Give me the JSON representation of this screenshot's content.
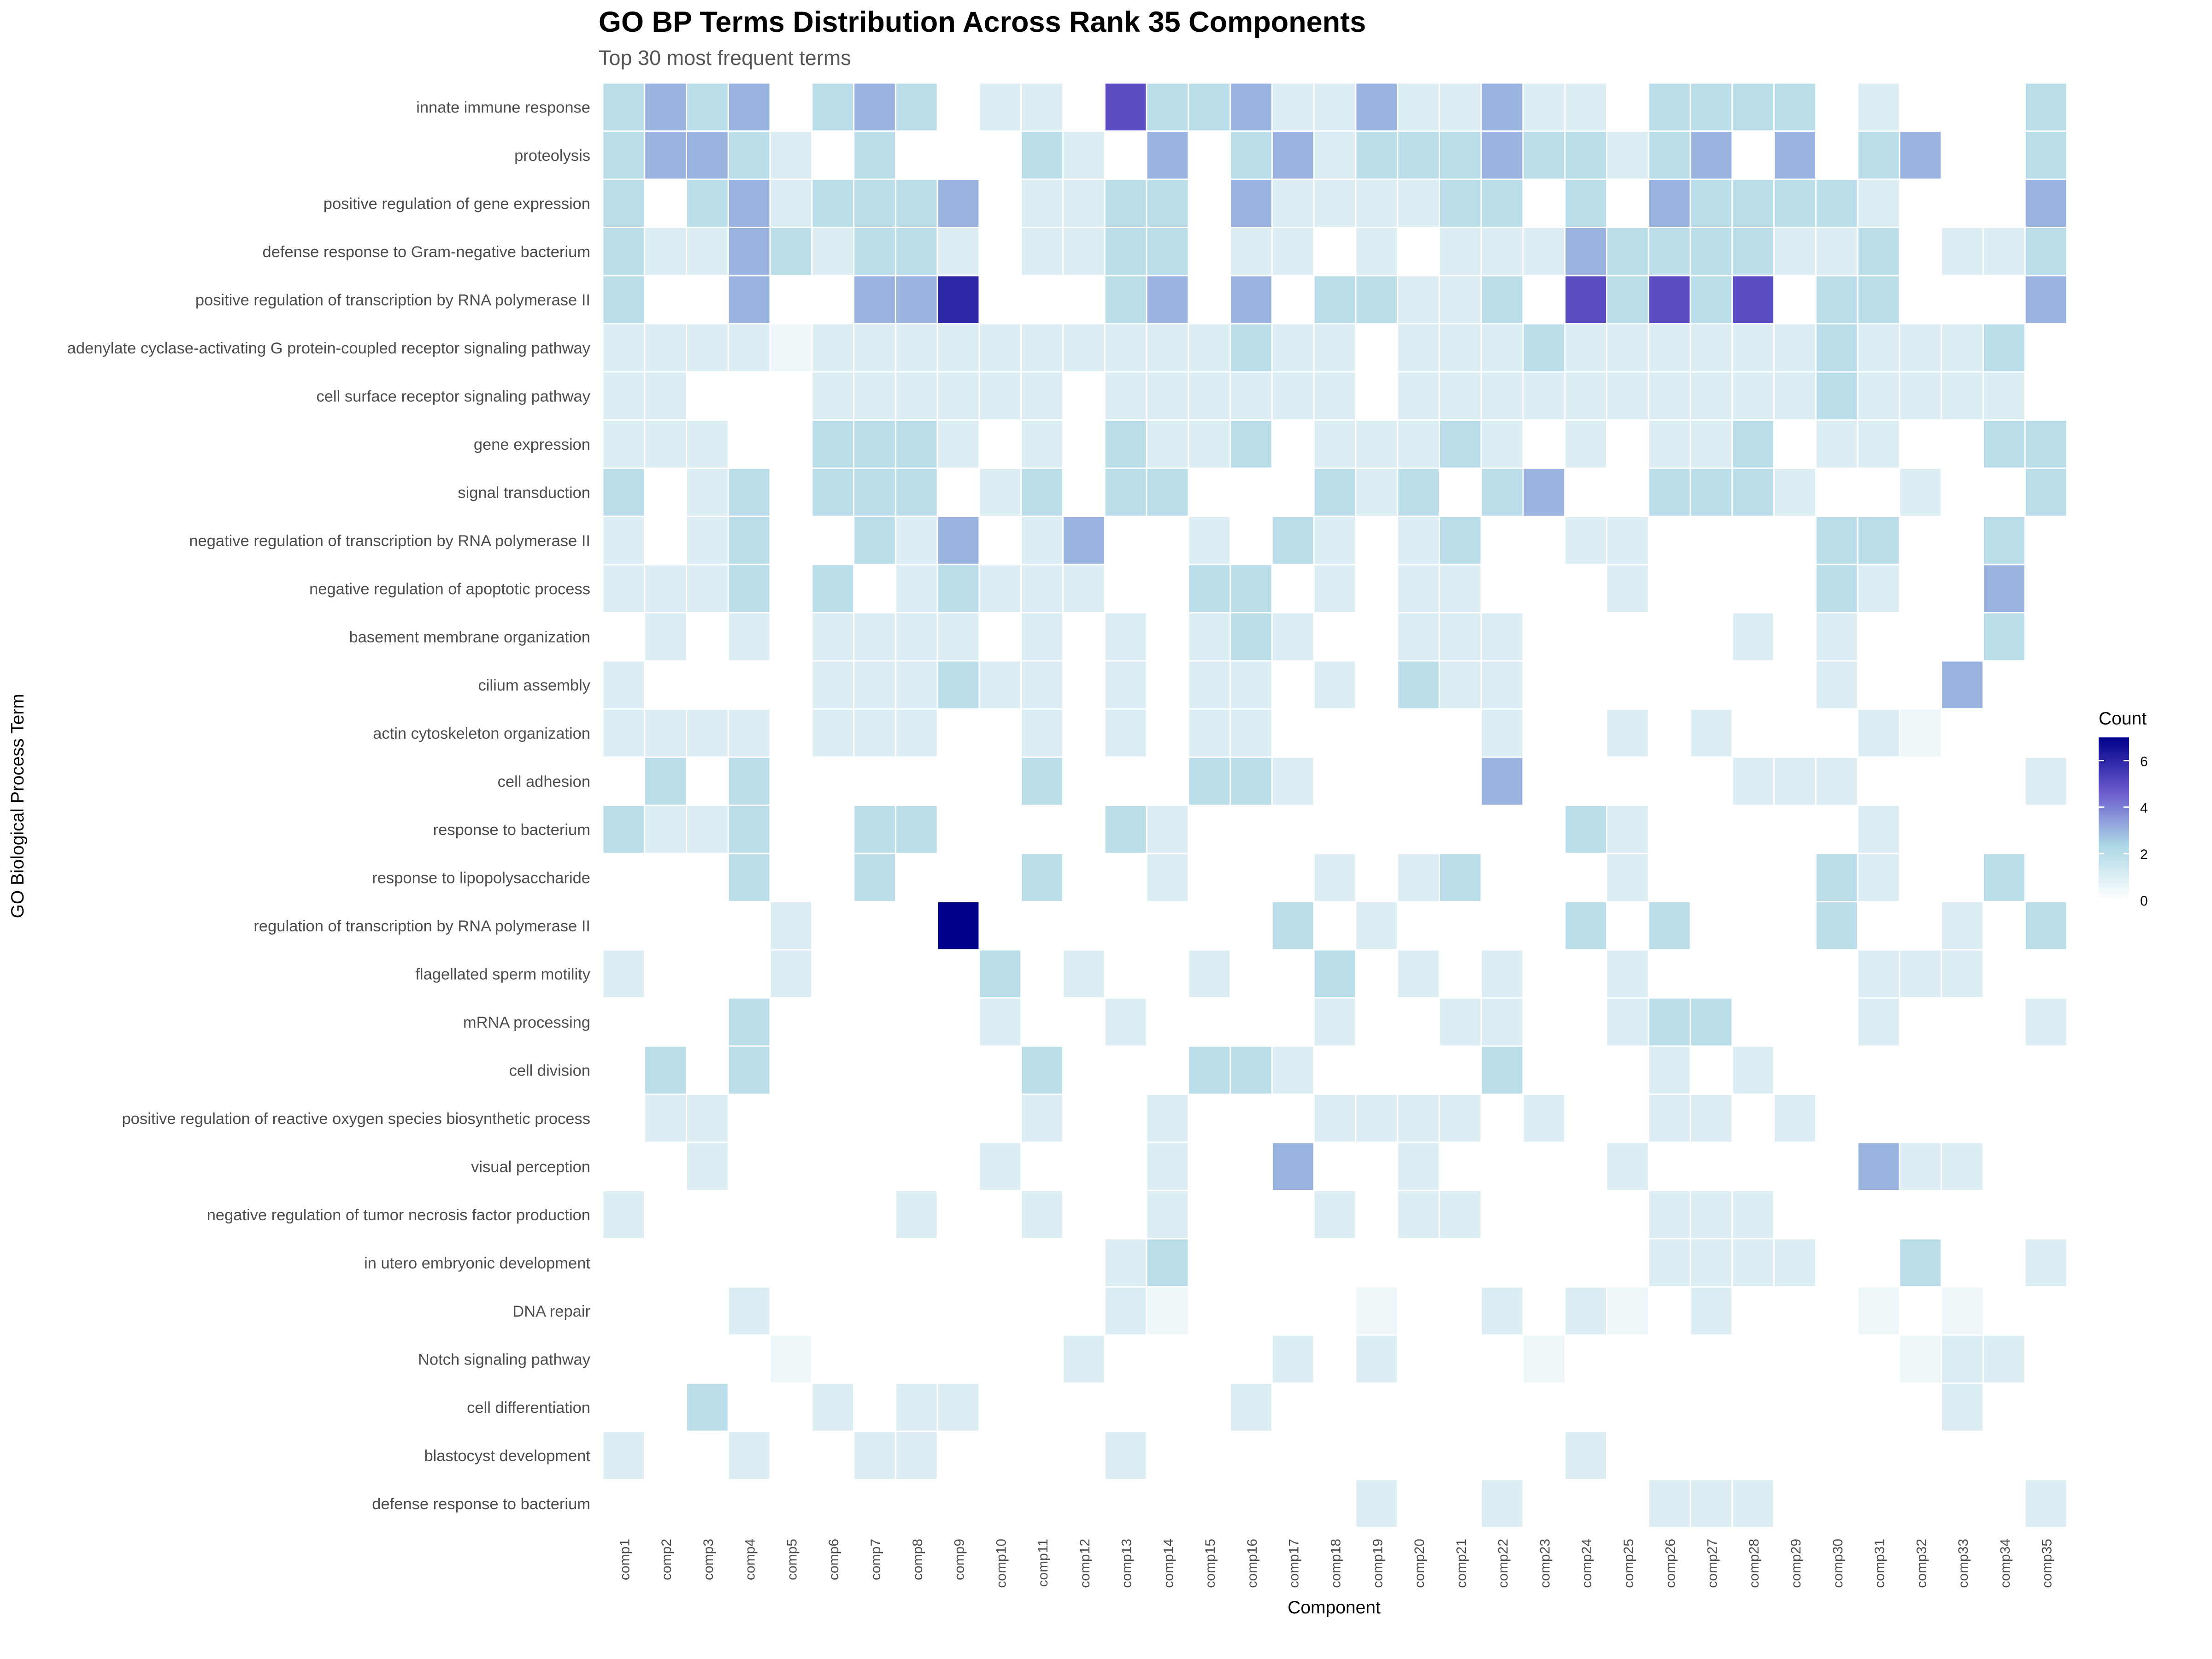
{
  "chart_data": {
    "type": "heatmap",
    "title": "GO BP Terms Distribution Across Rank 35 Components",
    "subtitle": "Top 30 most frequent terms",
    "x_label": "Component",
    "y_label": "GO Biological Process Term",
    "legend_title": "Count",
    "clim": [
      0,
      7
    ],
    "cticks": [
      0,
      2,
      4,
      6
    ],
    "colors": [
      "#ffffff",
      "#add8e6",
      "#6a5acd",
      "#00008b"
    ],
    "x": [
      "comp1",
      "comp2",
      "comp3",
      "comp4",
      "comp5",
      "comp6",
      "comp7",
      "comp8",
      "comp9",
      "comp10",
      "comp11",
      "comp12",
      "comp13",
      "comp14",
      "comp15",
      "comp16",
      "comp17",
      "comp18",
      "comp19",
      "comp20",
      "comp21",
      "comp22",
      "comp23",
      "comp24",
      "comp25",
      "comp26",
      "comp27",
      "comp28",
      "comp29",
      "comp30",
      "comp31",
      "comp32",
      "comp33",
      "comp34",
      "comp35"
    ],
    "y": [
      "innate immune response",
      "proteolysis",
      "positive regulation of gene expression",
      "defense response to Gram-negative bacterium",
      "positive regulation of transcription by RNA polymerase II",
      "adenylate cyclase-activating G protein-coupled receptor signaling pathway",
      "cell surface receptor signaling pathway",
      "gene expression",
      "signal transduction",
      "negative regulation of transcription by RNA polymerase II",
      "negative regulation of apoptotic process",
      "basement membrane organization",
      "cilium assembly",
      "actin cytoskeleton organization",
      "cell adhesion",
      "response to bacterium",
      "response to lipopolysaccharide",
      "regulation of transcription by RNA polymerase II",
      "flagellated sperm motility",
      "mRNA processing",
      "cell division",
      "positive regulation of reactive oxygen species biosynthetic process",
      "visual perception",
      "negative regulation of tumor necrosis factor production",
      "in utero embryonic development",
      "DNA repair",
      "Notch signaling pathway",
      "cell differentiation",
      "blastocyst development",
      "defense response to bacterium"
    ],
    "values": [
      [
        2,
        3,
        2,
        3,
        null,
        2,
        3,
        2,
        null,
        1,
        1,
        null,
        5,
        2,
        2,
        3,
        1,
        1,
        3,
        1,
        1,
        3,
        1,
        1,
        null,
        2,
        2,
        2,
        2,
        null,
        1,
        null,
        null,
        null,
        2
      ],
      [
        2,
        3,
        3,
        2,
        1,
        null,
        2,
        null,
        null,
        null,
        2,
        1,
        null,
        3,
        null,
        2,
        3,
        1,
        2,
        2,
        2,
        3,
        2,
        2,
        1,
        2,
        3,
        null,
        3,
        null,
        2,
        3,
        null,
        null,
        2
      ],
      [
        2,
        null,
        2,
        3,
        1,
        2,
        2,
        2,
        3,
        null,
        1,
        1,
        2,
        2,
        null,
        3,
        1,
        1,
        1,
        1,
        2,
        2,
        null,
        2,
        null,
        3,
        2,
        2,
        2,
        2,
        1,
        null,
        null,
        null,
        3
      ],
      [
        2,
        1,
        1,
        3,
        2,
        1,
        2,
        2,
        1,
        null,
        1,
        1,
        2,
        2,
        null,
        1,
        1,
        null,
        1,
        null,
        1,
        1,
        1,
        3,
        2,
        2,
        2,
        2,
        1,
        1,
        2,
        null,
        1,
        1,
        2
      ],
      [
        2,
        null,
        null,
        3,
        null,
        null,
        3,
        3,
        6,
        null,
        null,
        null,
        2,
        3,
        null,
        3,
        null,
        2,
        2,
        1,
        1,
        2,
        null,
        5,
        2,
        5,
        2,
        5,
        null,
        2,
        2,
        null,
        null,
        null,
        3
      ],
      [
        1,
        1,
        1,
        1,
        0.5,
        1,
        1,
        1,
        1,
        1,
        1,
        1,
        1,
        1,
        1,
        2,
        1,
        1,
        null,
        1,
        1,
        1,
        2,
        1,
        1,
        1,
        1,
        1,
        1,
        2,
        1,
        1,
        1,
        2,
        null
      ],
      [
        1,
        1,
        null,
        null,
        null,
        1,
        1,
        1,
        1,
        1,
        1,
        null,
        1,
        1,
        1,
        1,
        1,
        1,
        null,
        1,
        1,
        1,
        1,
        1,
        1,
        1,
        1,
        1,
        1,
        2,
        1,
        1,
        1,
        1,
        null
      ],
      [
        1,
        1,
        1,
        null,
        null,
        2,
        2,
        2,
        1,
        null,
        1,
        null,
        2,
        1,
        1,
        2,
        null,
        1,
        1,
        1,
        2,
        1,
        null,
        1,
        null,
        1,
        1,
        2,
        null,
        1,
        1,
        null,
        null,
        2,
        2
      ],
      [
        2,
        null,
        1,
        2,
        null,
        2,
        2,
        2,
        null,
        1,
        2,
        null,
        2,
        2,
        null,
        null,
        null,
        2,
        1,
        2,
        null,
        2,
        3,
        null,
        null,
        2,
        2,
        2,
        1,
        null,
        null,
        1,
        null,
        null,
        2
      ],
      [
        1,
        null,
        1,
        2,
        null,
        null,
        2,
        1,
        3,
        null,
        1,
        3,
        null,
        null,
        1,
        null,
        2,
        1,
        null,
        1,
        2,
        null,
        null,
        1,
        1,
        null,
        null,
        null,
        null,
        2,
        2,
        null,
        null,
        2,
        null
      ],
      [
        1,
        1,
        1,
        2,
        null,
        2,
        null,
        1,
        2,
        1,
        1,
        1,
        null,
        null,
        2,
        2,
        null,
        1,
        null,
        1,
        1,
        null,
        null,
        null,
        1,
        null,
        null,
        null,
        null,
        2,
        1,
        null,
        null,
        3,
        null
      ],
      [
        null,
        1,
        null,
        1,
        null,
        1,
        1,
        1,
        1,
        null,
        1,
        null,
        1,
        null,
        1,
        2,
        1,
        null,
        null,
        1,
        1,
        1,
        null,
        null,
        null,
        null,
        null,
        1,
        null,
        1,
        null,
        null,
        null,
        2,
        null
      ],
      [
        1,
        null,
        null,
        null,
        null,
        1,
        1,
        1,
        2,
        1,
        1,
        null,
        1,
        null,
        1,
        1,
        null,
        1,
        null,
        2,
        1,
        1,
        null,
        null,
        null,
        null,
        null,
        null,
        null,
        1,
        null,
        null,
        3,
        null,
        null
      ],
      [
        1,
        1,
        1,
        1,
        null,
        1,
        1,
        1,
        null,
        null,
        1,
        null,
        1,
        null,
        1,
        1,
        null,
        null,
        null,
        null,
        null,
        1,
        null,
        null,
        1,
        null,
        1,
        null,
        null,
        null,
        1,
        0.5,
        null,
        null,
        null
      ],
      [
        null,
        2,
        null,
        2,
        null,
        null,
        null,
        null,
        null,
        null,
        2,
        null,
        null,
        null,
        2,
        2,
        1,
        null,
        null,
        null,
        null,
        3,
        null,
        null,
        null,
        null,
        null,
        1,
        1,
        1,
        null,
        null,
        null,
        null,
        1
      ],
      [
        2,
        1,
        1,
        2,
        null,
        null,
        2,
        2,
        null,
        null,
        null,
        null,
        2,
        1,
        null,
        null,
        null,
        null,
        null,
        null,
        null,
        null,
        null,
        2,
        1,
        null,
        null,
        null,
        null,
        null,
        1,
        null,
        null,
        null,
        null
      ],
      [
        null,
        null,
        null,
        2,
        null,
        null,
        2,
        null,
        null,
        null,
        2,
        null,
        null,
        1,
        null,
        null,
        null,
        1,
        null,
        1,
        2,
        null,
        null,
        null,
        1,
        null,
        null,
        null,
        null,
        2,
        1,
        null,
        null,
        2,
        null
      ],
      [
        null,
        null,
        null,
        null,
        1,
        null,
        null,
        null,
        7,
        null,
        null,
        null,
        null,
        null,
        null,
        null,
        2,
        null,
        1,
        null,
        null,
        null,
        null,
        2,
        null,
        2,
        null,
        null,
        null,
        2,
        null,
        null,
        1,
        null,
        2
      ],
      [
        1,
        null,
        null,
        null,
        1,
        null,
        null,
        null,
        null,
        2,
        null,
        1,
        null,
        null,
        1,
        null,
        null,
        2,
        null,
        1,
        null,
        1,
        null,
        null,
        1,
        null,
        null,
        null,
        null,
        null,
        1,
        1,
        1,
        null,
        null
      ],
      [
        null,
        null,
        null,
        2,
        null,
        null,
        null,
        null,
        null,
        1,
        null,
        null,
        1,
        null,
        null,
        null,
        null,
        1,
        null,
        null,
        1,
        1,
        null,
        null,
        1,
        2,
        2,
        null,
        null,
        null,
        1,
        null,
        null,
        null,
        1
      ],
      [
        null,
        2,
        null,
        2,
        null,
        null,
        null,
        null,
        null,
        null,
        2,
        null,
        null,
        null,
        2,
        2,
        1,
        null,
        null,
        null,
        null,
        2,
        null,
        null,
        null,
        1,
        null,
        1,
        null,
        null,
        null,
        null,
        null,
        null,
        null
      ],
      [
        null,
        1,
        1,
        null,
        null,
        null,
        null,
        null,
        null,
        null,
        1,
        null,
        null,
        1,
        null,
        null,
        null,
        1,
        1,
        1,
        1,
        null,
        1,
        null,
        null,
        1,
        1,
        null,
        1,
        null,
        null,
        null,
        null,
        null,
        null
      ],
      [
        null,
        null,
        1,
        null,
        null,
        null,
        null,
        null,
        null,
        1,
        null,
        null,
        null,
        1,
        null,
        null,
        3,
        null,
        null,
        1,
        null,
        null,
        null,
        null,
        1,
        null,
        null,
        null,
        null,
        null,
        3,
        1,
        1,
        null,
        null
      ],
      [
        1,
        null,
        null,
        null,
        null,
        null,
        null,
        1,
        null,
        null,
        1,
        null,
        null,
        1,
        null,
        null,
        null,
        1,
        null,
        1,
        1,
        null,
        null,
        null,
        null,
        1,
        1,
        1,
        null,
        null,
        null,
        null,
        null,
        null,
        null
      ],
      [
        null,
        null,
        null,
        null,
        null,
        null,
        null,
        null,
        null,
        null,
        null,
        null,
        1,
        2,
        null,
        null,
        null,
        null,
        null,
        null,
        null,
        null,
        null,
        null,
        null,
        1,
        1,
        1,
        1,
        null,
        null,
        2,
        null,
        null,
        1
      ],
      [
        null,
        null,
        null,
        1,
        null,
        null,
        null,
        null,
        null,
        null,
        null,
        null,
        1,
        0.5,
        null,
        null,
        null,
        null,
        0.5,
        null,
        null,
        1,
        null,
        1,
        0.5,
        null,
        1,
        null,
        null,
        null,
        0.5,
        null,
        0.5,
        null,
        null
      ],
      [
        null,
        null,
        null,
        null,
        0.5,
        null,
        null,
        null,
        null,
        null,
        null,
        1,
        null,
        null,
        null,
        null,
        1,
        null,
        1,
        null,
        null,
        null,
        0.5,
        null,
        null,
        null,
        null,
        null,
        null,
        null,
        null,
        0.5,
        1,
        1,
        null
      ],
      [
        null,
        null,
        2,
        null,
        null,
        1,
        null,
        1,
        1,
        null,
        null,
        null,
        null,
        null,
        null,
        1,
        null,
        null,
        null,
        null,
        null,
        null,
        null,
        null,
        null,
        null,
        null,
        null,
        null,
        null,
        null,
        null,
        1,
        null,
        null
      ],
      [
        1,
        null,
        null,
        1,
        null,
        null,
        1,
        1,
        null,
        null,
        null,
        null,
        1,
        null,
        null,
        null,
        null,
        null,
        null,
        null,
        null,
        null,
        null,
        1,
        null,
        null,
        null,
        null,
        null,
        null,
        null,
        null,
        null,
        null,
        null
      ],
      [
        null,
        null,
        null,
        null,
        null,
        null,
        null,
        null,
        null,
        null,
        null,
        null,
        null,
        null,
        null,
        null,
        null,
        null,
        1,
        null,
        null,
        1,
        null,
        null,
        null,
        1,
        1,
        1,
        null,
        null,
        null,
        null,
        null,
        null,
        1
      ]
    ]
  }
}
